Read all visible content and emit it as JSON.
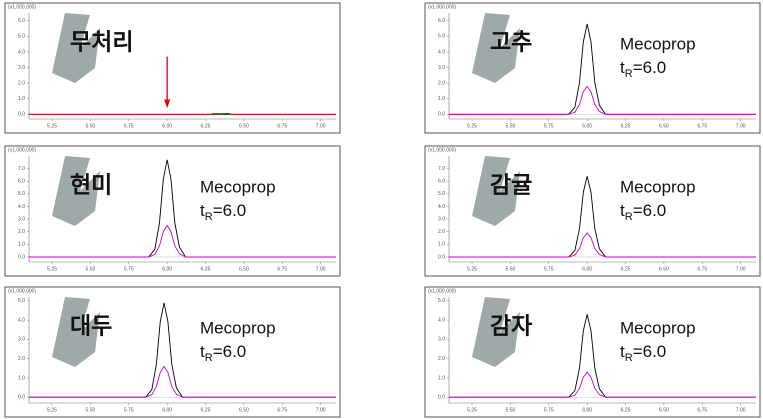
{
  "chart_data": [
    {
      "type": "line",
      "title": "무처리",
      "y_unit": "(x1,000,000)",
      "arrow_x": 6.0,
      "xlim": [
        5.1,
        7.1
      ],
      "ylim": [
        -0.3,
        6.5
      ],
      "xticks": [
        {
          "value": 5.25,
          "label": "5.25"
        },
        {
          "value": 5.5,
          "label": "5.50"
        },
        {
          "value": 5.75,
          "label": "5.75"
        },
        {
          "value": 6.0,
          "label": "6.00"
        },
        {
          "value": 6.25,
          "label": "6.25"
        },
        {
          "value": 6.5,
          "label": "6.50"
        },
        {
          "value": 6.75,
          "label": "6.75"
        },
        {
          "value": 7.0,
          "label": "7.00"
        }
      ],
      "yticks": [
        {
          "value": 0,
          "label": "0.0"
        },
        {
          "value": 1,
          "label": "1.0"
        },
        {
          "value": 2,
          "label": "2.0"
        },
        {
          "value": 3,
          "label": "3.0"
        },
        {
          "value": 4,
          "label": "4.0"
        },
        {
          "value": 5,
          "label": "5.0"
        },
        {
          "value": 6,
          "label": "6.0"
        }
      ],
      "series": [
        {
          "color": "#000000",
          "x": [
            5.1,
            6.0,
            7.1
          ],
          "values": [
            0,
            0,
            0
          ]
        },
        {
          "color": "#e00000",
          "x": [
            5.1,
            6.28,
            6.3,
            6.35,
            6.4,
            6.42,
            7.1
          ],
          "values": [
            0,
            0,
            0.05,
            0.04,
            0.06,
            0,
            0
          ]
        }
      ]
    },
    {
      "type": "line",
      "title": "고추",
      "y_unit": "(x1,000,000)",
      "compound": "Mecoprop",
      "retention": [
        "t",
        "R",
        "=6.0"
      ],
      "xlim": [
        5.1,
        7.1
      ],
      "ylim": [
        -0.3,
        6.5
      ],
      "xticks": [
        {
          "value": 5.25,
          "label": "5.25"
        },
        {
          "value": 5.5,
          "label": "5.50"
        },
        {
          "value": 5.75,
          "label": "5.75"
        },
        {
          "value": 6.0,
          "label": "6.00"
        },
        {
          "value": 6.25,
          "label": "6.25"
        },
        {
          "value": 6.5,
          "label": "6.50"
        },
        {
          "value": 6.75,
          "label": "6.75"
        },
        {
          "value": 7.0,
          "label": "7.00"
        }
      ],
      "yticks": [
        {
          "value": 0,
          "label": "0.0"
        },
        {
          "value": 1,
          "label": "1.0"
        },
        {
          "value": 2,
          "label": "2.0"
        },
        {
          "value": 3,
          "label": "3.0"
        },
        {
          "value": 4,
          "label": "4.0"
        },
        {
          "value": 5,
          "label": "5.0"
        },
        {
          "value": 6,
          "label": "6.0"
        }
      ],
      "series": [
        {
          "color": "#000000",
          "x": [
            5.1,
            5.88,
            5.92,
            5.95,
            5.975,
            6.0,
            6.025,
            6.05,
            6.08,
            6.12,
            7.1
          ],
          "values": [
            0,
            0,
            0.46,
            2.03,
            4.64,
            5.8,
            4.64,
            2.03,
            0.58,
            0,
            0
          ]
        },
        {
          "color": "#cc00cc",
          "x": [
            5.1,
            5.88,
            5.92,
            5.95,
            5.975,
            6.0,
            6.025,
            6.05,
            6.08,
            6.12,
            7.1
          ],
          "values": [
            0,
            0,
            0.14,
            0.63,
            1.44,
            1.8,
            1.44,
            0.63,
            0.18,
            0,
            0
          ]
        }
      ]
    },
    {
      "type": "line",
      "title": "현미",
      "y_unit": "(x1,000,000)",
      "compound": "Mecoprop",
      "retention": [
        "t",
        "R",
        "=6.0"
      ],
      "xlim": [
        5.1,
        7.1
      ],
      "ylim": [
        -0.4,
        8.0
      ],
      "xticks": [
        {
          "value": 5.25,
          "label": "5.25"
        },
        {
          "value": 5.5,
          "label": "5.50"
        },
        {
          "value": 5.75,
          "label": "5.75"
        },
        {
          "value": 6.0,
          "label": "6.00"
        },
        {
          "value": 6.25,
          "label": "6.25"
        },
        {
          "value": 6.5,
          "label": "6.50"
        },
        {
          "value": 6.75,
          "label": "6.75"
        },
        {
          "value": 7.0,
          "label": "7.00"
        }
      ],
      "yticks": [
        {
          "value": 0,
          "label": "0.0"
        },
        {
          "value": 1,
          "label": "1.0"
        },
        {
          "value": 2,
          "label": "2.0"
        },
        {
          "value": 3,
          "label": "3.0"
        },
        {
          "value": 4,
          "label": "4.0"
        },
        {
          "value": 5,
          "label": "5.0"
        },
        {
          "value": 6,
          "label": "6.0"
        },
        {
          "value": 7,
          "label": "7.0"
        }
      ],
      "series": [
        {
          "color": "#000000",
          "x": [
            5.1,
            5.88,
            5.92,
            5.95,
            5.975,
            6.0,
            6.025,
            6.05,
            6.08,
            6.12,
            7.1
          ],
          "values": [
            0,
            0,
            0.62,
            2.7,
            6.16,
            7.7,
            6.16,
            2.7,
            0.77,
            0,
            0
          ]
        },
        {
          "color": "#cc00cc",
          "x": [
            5.1,
            5.88,
            5.92,
            5.95,
            5.975,
            6.0,
            6.025,
            6.05,
            6.08,
            6.12,
            7.1
          ],
          "values": [
            0,
            0,
            0.2,
            0.88,
            2.0,
            2.5,
            2.0,
            0.88,
            0.25,
            0,
            0
          ]
        }
      ]
    },
    {
      "type": "line",
      "title": "감귤",
      "y_unit": "(x1,000,000)",
      "compound": "Mecoprop",
      "retention": [
        "t",
        "R",
        "=6.0"
      ],
      "xlim": [
        5.1,
        7.1
      ],
      "ylim": [
        -0.4,
        8.0
      ],
      "xticks": [
        {
          "value": 5.25,
          "label": "5.25"
        },
        {
          "value": 5.5,
          "label": "5.50"
        },
        {
          "value": 5.75,
          "label": "5.75"
        },
        {
          "value": 6.0,
          "label": "6.00"
        },
        {
          "value": 6.25,
          "label": "6.25"
        },
        {
          "value": 6.5,
          "label": "6.50"
        },
        {
          "value": 6.75,
          "label": "6.75"
        },
        {
          "value": 7.0,
          "label": "7.00"
        }
      ],
      "yticks": [
        {
          "value": 0,
          "label": "0.0"
        },
        {
          "value": 1,
          "label": "1.0"
        },
        {
          "value": 2,
          "label": "2.0"
        },
        {
          "value": 3,
          "label": "3.0"
        },
        {
          "value": 4,
          "label": "4.0"
        },
        {
          "value": 5,
          "label": "5.0"
        },
        {
          "value": 6,
          "label": "6.0"
        },
        {
          "value": 7,
          "label": "7.0"
        }
      ],
      "series": [
        {
          "color": "#000000",
          "x": [
            5.1,
            5.88,
            5.92,
            5.95,
            5.975,
            6.0,
            6.025,
            6.05,
            6.08,
            6.12,
            7.1
          ],
          "values": [
            0,
            0,
            0.51,
            2.24,
            5.12,
            6.4,
            5.12,
            2.24,
            0.64,
            0,
            0
          ]
        },
        {
          "color": "#cc00cc",
          "x": [
            5.1,
            5.88,
            5.92,
            5.95,
            5.975,
            6.0,
            6.025,
            6.05,
            6.08,
            6.12,
            7.1
          ],
          "values": [
            0,
            0,
            0.15,
            0.67,
            1.52,
            1.9,
            1.52,
            0.67,
            0.19,
            0,
            0
          ]
        }
      ]
    },
    {
      "type": "line",
      "title": "대두",
      "y_unit": "(x1,000,000)",
      "compound": "Mecoprop",
      "retention": [
        "t",
        "R",
        "=6.0"
      ],
      "xlim": [
        5.1,
        7.1
      ],
      "ylim": [
        -0.3,
        5.2
      ],
      "xticks": [
        {
          "value": 5.25,
          "label": "5.25"
        },
        {
          "value": 5.5,
          "label": "5.50"
        },
        {
          "value": 5.75,
          "label": "5.75"
        },
        {
          "value": 6.0,
          "label": "6.00"
        },
        {
          "value": 6.25,
          "label": "6.25"
        },
        {
          "value": 6.5,
          "label": "6.50"
        },
        {
          "value": 6.75,
          "label": "6.75"
        },
        {
          "value": 7.0,
          "label": "7.00"
        }
      ],
      "yticks": [
        {
          "value": 0,
          "label": "0.0"
        },
        {
          "value": 1,
          "label": "1.0"
        },
        {
          "value": 2,
          "label": "2.0"
        },
        {
          "value": 3,
          "label": "3.0"
        },
        {
          "value": 4,
          "label": "4.0"
        },
        {
          "value": 5,
          "label": "5.0"
        }
      ],
      "series": [
        {
          "color": "#000000",
          "x": [
            5.1,
            5.86,
            5.9,
            5.93,
            5.955,
            5.98,
            6.005,
            6.03,
            6.06,
            6.1,
            7.1
          ],
          "values": [
            0,
            0,
            0.39,
            1.72,
            3.92,
            4.9,
            3.92,
            1.72,
            0.49,
            0,
            0
          ]
        },
        {
          "color": "#cc00cc",
          "x": [
            5.1,
            5.86,
            5.9,
            5.93,
            5.955,
            5.98,
            6.005,
            6.03,
            6.06,
            6.1,
            7.1
          ],
          "values": [
            0,
            0,
            0.13,
            0.56,
            1.28,
            1.6,
            1.28,
            0.56,
            0.16,
            0,
            0
          ]
        }
      ]
    },
    {
      "type": "line",
      "title": "감자",
      "y_unit": "(x1,000,000)",
      "compound": "Mecoprop",
      "retention": [
        "t",
        "R",
        "=6.0"
      ],
      "xlim": [
        5.1,
        7.1
      ],
      "ylim": [
        -0.3,
        5.2
      ],
      "xticks": [
        {
          "value": 5.25,
          "label": "5.25"
        },
        {
          "value": 5.5,
          "label": "5.50"
        },
        {
          "value": 5.75,
          "label": "5.75"
        },
        {
          "value": 6.0,
          "label": "6.00"
        },
        {
          "value": 6.25,
          "label": "6.25"
        },
        {
          "value": 6.5,
          "label": "6.50"
        },
        {
          "value": 6.75,
          "label": "6.75"
        },
        {
          "value": 7.0,
          "label": "7.00"
        }
      ],
      "yticks": [
        {
          "value": 0,
          "label": "0.0"
        },
        {
          "value": 1,
          "label": "1.0"
        },
        {
          "value": 2,
          "label": "2.0"
        },
        {
          "value": 3,
          "label": "3.0"
        },
        {
          "value": 4,
          "label": "4.0"
        },
        {
          "value": 5,
          "label": "5.0"
        }
      ],
      "series": [
        {
          "color": "#000000",
          "x": [
            5.1,
            5.88,
            5.92,
            5.95,
            5.975,
            6.0,
            6.025,
            6.05,
            6.08,
            6.12,
            7.1
          ],
          "values": [
            0,
            0,
            0.34,
            1.51,
            3.44,
            4.3,
            3.44,
            1.51,
            0.43,
            0,
            0
          ]
        },
        {
          "color": "#cc00cc",
          "x": [
            5.1,
            5.88,
            5.92,
            5.95,
            5.975,
            6.0,
            6.025,
            6.05,
            6.08,
            6.12,
            7.1
          ],
          "values": [
            0,
            0,
            0.1,
            0.46,
            1.04,
            1.3,
            1.04,
            0.46,
            0.13,
            0,
            0
          ]
        }
      ]
    }
  ]
}
